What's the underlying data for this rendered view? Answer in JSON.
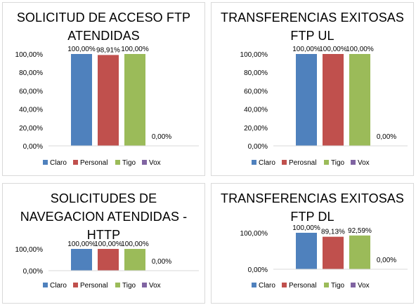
{
  "chart_data": [
    {
      "type": "bar",
      "title_lines": [
        "SOLICITUD DE ACCESO FTP",
        "ATENDIDAS"
      ],
      "categories": [
        ""
      ],
      "series": [
        {
          "name": "Claro",
          "values": [
            100.0
          ],
          "label": "100,00%",
          "color": "#4f81bd"
        },
        {
          "name": "Personal",
          "values": [
            98.91
          ],
          "label": "98,91%",
          "color": "#c0504d"
        },
        {
          "name": "Tigo",
          "values": [
            100.0
          ],
          "label": "100,00%",
          "color": "#9bbb59"
        },
        {
          "name": "Vox",
          "values": [
            0.0
          ],
          "label": "0,00%",
          "color": "#8064a2"
        }
      ],
      "yticks": [
        "0,00%",
        "20,00%",
        "40,00%",
        "60,00%",
        "80,00%",
        "100,00%"
      ],
      "ylim": [
        0,
        100
      ],
      "grid": false,
      "legend": "bottom"
    },
    {
      "type": "bar",
      "title_lines": [
        "TRANSFERENCIAS EXITOSAS",
        "FTP UL"
      ],
      "categories": [
        ""
      ],
      "series": [
        {
          "name": "Claro",
          "values": [
            100.0
          ],
          "label": "100,00%",
          "color": "#4f81bd"
        },
        {
          "name": "Perosnal",
          "values": [
            100.0
          ],
          "label": "100,00%",
          "color": "#c0504d"
        },
        {
          "name": "Tigo",
          "values": [
            100.0
          ],
          "label": "100,00%",
          "color": "#9bbb59"
        },
        {
          "name": "Vox",
          "values": [
            0.0
          ],
          "label": "0,00%",
          "color": "#8064a2"
        }
      ],
      "yticks": [
        "0,00%",
        "20,00%",
        "40,00%",
        "60,00%",
        "80,00%",
        "100,00%"
      ],
      "ylim": [
        0,
        100
      ],
      "grid": false,
      "legend": "bottom"
    },
    {
      "type": "bar",
      "title_lines": [
        "SOLICITUDES DE",
        "NAVEGACION ATENDIDAS -",
        "HTTP"
      ],
      "categories": [
        ""
      ],
      "series": [
        {
          "name": "Claro",
          "values": [
            100.0
          ],
          "label": "100,00%",
          "color": "#4f81bd"
        },
        {
          "name": "Personal",
          "values": [
            100.0
          ],
          "label": "100,00%",
          "color": "#c0504d"
        },
        {
          "name": "Tigo",
          "values": [
            100.0
          ],
          "label": "100,00%",
          "color": "#9bbb59"
        },
        {
          "name": "Vox",
          "values": [
            0.0
          ],
          "label": "0,00%",
          "color": "#8064a2"
        }
      ],
      "yticks": [
        "0,00%",
        "100,00%"
      ],
      "ylim": [
        0,
        100
      ],
      "grid": false,
      "legend": "bottom"
    },
    {
      "type": "bar",
      "title_lines": [
        "TRANSFERENCIAS EXITOSAS",
        "FTP DL"
      ],
      "categories": [
        ""
      ],
      "series": [
        {
          "name": "Claro",
          "values": [
            100.0
          ],
          "label": "100,00%",
          "color": "#4f81bd"
        },
        {
          "name": "Personal",
          "values": [
            89.13
          ],
          "label": "89,13%",
          "color": "#c0504d"
        },
        {
          "name": "Tigo",
          "values": [
            92.59
          ],
          "label": "92,59%",
          "color": "#9bbb59"
        },
        {
          "name": "Vox",
          "values": [
            0.0
          ],
          "label": "0,00%",
          "color": "#8064a2"
        }
      ],
      "yticks": [
        "0,00%",
        "100,00%"
      ],
      "ylim": [
        0,
        100
      ],
      "grid": false,
      "legend": "bottom"
    }
  ]
}
